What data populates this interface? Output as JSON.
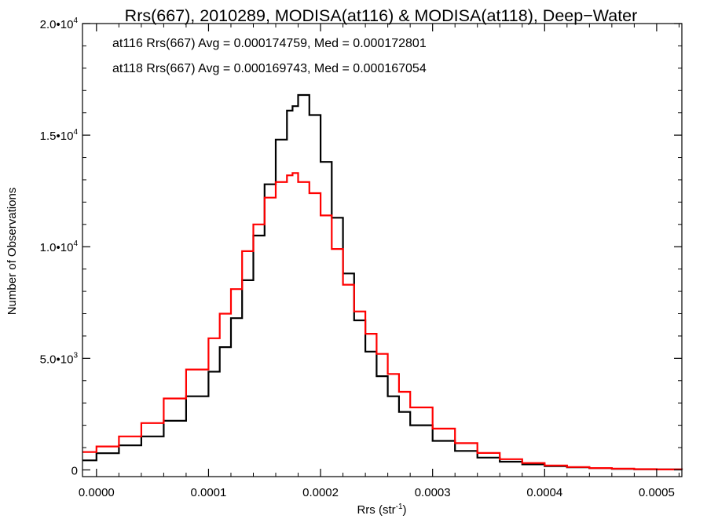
{
  "chart_data": {
    "type": "line",
    "title": "Rrs(667), 2010289, MODISA(at116) & MODISA(at118), Deep−Water",
    "xlabel": "Rrs (str",
    "xlabel_sup": "-1",
    "xlabel_end": ")",
    "ylabel": "Number of Observations",
    "xlim": [
      -1.25e-05,
      0.0005225
    ],
    "ylim": [
      -300,
      20000
    ],
    "x_ticks": [
      {
        "value": 0.0,
        "label": "0.0000"
      },
      {
        "value": 0.0001,
        "label": "0.0001"
      },
      {
        "value": 0.0002,
        "label": "0.0002"
      },
      {
        "value": 0.0003,
        "label": "0.0003"
      },
      {
        "value": 0.0004,
        "label": "0.0004"
      },
      {
        "value": 0.0005,
        "label": "0.0005"
      }
    ],
    "y_ticks": [
      {
        "value": 0,
        "label": "0",
        "sup": ""
      },
      {
        "value": 5000,
        "label": "5.0•10",
        "sup": "3"
      },
      {
        "value": 10000,
        "label": "1.0•10",
        "sup": "4"
      },
      {
        "value": 15000,
        "label": "1.5•10",
        "sup": "4"
      },
      {
        "value": 20000,
        "label": "2.0•10",
        "sup": "4"
      }
    ],
    "annotations": [
      {
        "text": "at116 Rrs(667) Avg = 0.000174759, Med = 0.000172801",
        "color": "#000000"
      },
      {
        "text": "at118 Rrs(667) Avg = 0.000169743, Med = 0.000167054",
        "color": "#ff0000"
      }
    ],
    "series": [
      {
        "color": "#000000",
        "x": [
          -1.25e-05,
          0.0,
          2e-05,
          4e-05,
          6e-05,
          8e-05,
          0.0001,
          0.00011,
          0.00012,
          0.00013,
          0.00014,
          0.00015,
          0.00016,
          0.00017,
          0.000175,
          0.00018,
          0.00019,
          0.0002,
          0.00021,
          0.00022,
          0.00023,
          0.00024,
          0.00025,
          0.00026,
          0.00027,
          0.00028,
          0.0003,
          0.00032,
          0.00034,
          0.00036,
          0.00038,
          0.0004,
          0.00042,
          0.00044,
          0.00046,
          0.00048,
          0.0005,
          0.0005225
        ],
        "y": [
          430,
          750,
          1100,
          1500,
          2200,
          3300,
          4400,
          5500,
          6800,
          8500,
          10500,
          12800,
          14800,
          16100,
          16300,
          16800,
          15900,
          13800,
          11300,
          8800,
          6700,
          5300,
          4200,
          3300,
          2600,
          2000,
          1300,
          850,
          550,
          370,
          250,
          170,
          120,
          80,
          50,
          30,
          20,
          10
        ]
      },
      {
        "color": "#ff0000",
        "x": [
          -1.25e-05,
          0.0,
          2e-05,
          4e-05,
          6e-05,
          8e-05,
          0.0001,
          0.00011,
          0.00012,
          0.00013,
          0.00014,
          0.00015,
          0.00016,
          0.00017,
          0.000175,
          0.00018,
          0.00019,
          0.0002,
          0.00021,
          0.00022,
          0.00023,
          0.00024,
          0.00025,
          0.00026,
          0.00027,
          0.00028,
          0.0003,
          0.00032,
          0.00034,
          0.00036,
          0.00038,
          0.0004,
          0.00042,
          0.00044,
          0.00046,
          0.00048,
          0.0005,
          0.0005225
        ],
        "y": [
          800,
          1050,
          1500,
          2100,
          3200,
          4500,
          5900,
          7000,
          8100,
          9800,
          11000,
          12200,
          12900,
          13200,
          13300,
          12900,
          12400,
          11400,
          9900,
          8300,
          7100,
          6100,
          5200,
          4300,
          3500,
          2800,
          1850,
          1200,
          760,
          480,
          310,
          200,
          130,
          85,
          55,
          35,
          20,
          10
        ]
      }
    ]
  }
}
